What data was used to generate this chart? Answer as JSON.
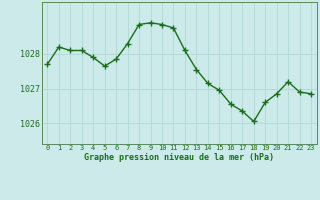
{
  "x": [
    0,
    1,
    2,
    3,
    4,
    5,
    6,
    7,
    8,
    9,
    10,
    11,
    12,
    13,
    14,
    15,
    16,
    17,
    18,
    19,
    20,
    21,
    22,
    23
  ],
  "y": [
    1027.7,
    1028.2,
    1028.1,
    1028.1,
    1027.9,
    1027.65,
    1027.85,
    1028.3,
    1028.85,
    1028.9,
    1028.85,
    1028.75,
    1028.1,
    1027.55,
    1027.15,
    1026.95,
    1026.55,
    1026.35,
    1026.05,
    1026.6,
    1026.85,
    1027.2,
    1026.9,
    1026.85
  ],
  "line_color": "#1a6e1a",
  "marker": "+",
  "marker_size": 4,
  "marker_linewidth": 1.0,
  "line_width": 1.0,
  "bg_color": "#cceaea",
  "grid_color": "#b0d8d8",
  "xlabel": "Graphe pression niveau de la mer (hPa)",
  "xlabel_color": "#1a6e1a",
  "tick_color": "#1a6e1a",
  "axis_color": "#5a8a5a",
  "ylabel_ticks": [
    1026,
    1027,
    1028
  ],
  "ylim": [
    1025.4,
    1029.5
  ],
  "xlim": [
    -0.5,
    23.5
  ],
  "xtick_labels": [
    "0",
    "1",
    "2",
    "3",
    "4",
    "5",
    "6",
    "7",
    "8",
    "9",
    "10",
    "11",
    "12",
    "13",
    "14",
    "15",
    "16",
    "17",
    "18",
    "19",
    "20",
    "21",
    "22",
    "23"
  ],
  "bottom_bar_color": "#2a6e2a",
  "bottom_bar_height": 0.18
}
